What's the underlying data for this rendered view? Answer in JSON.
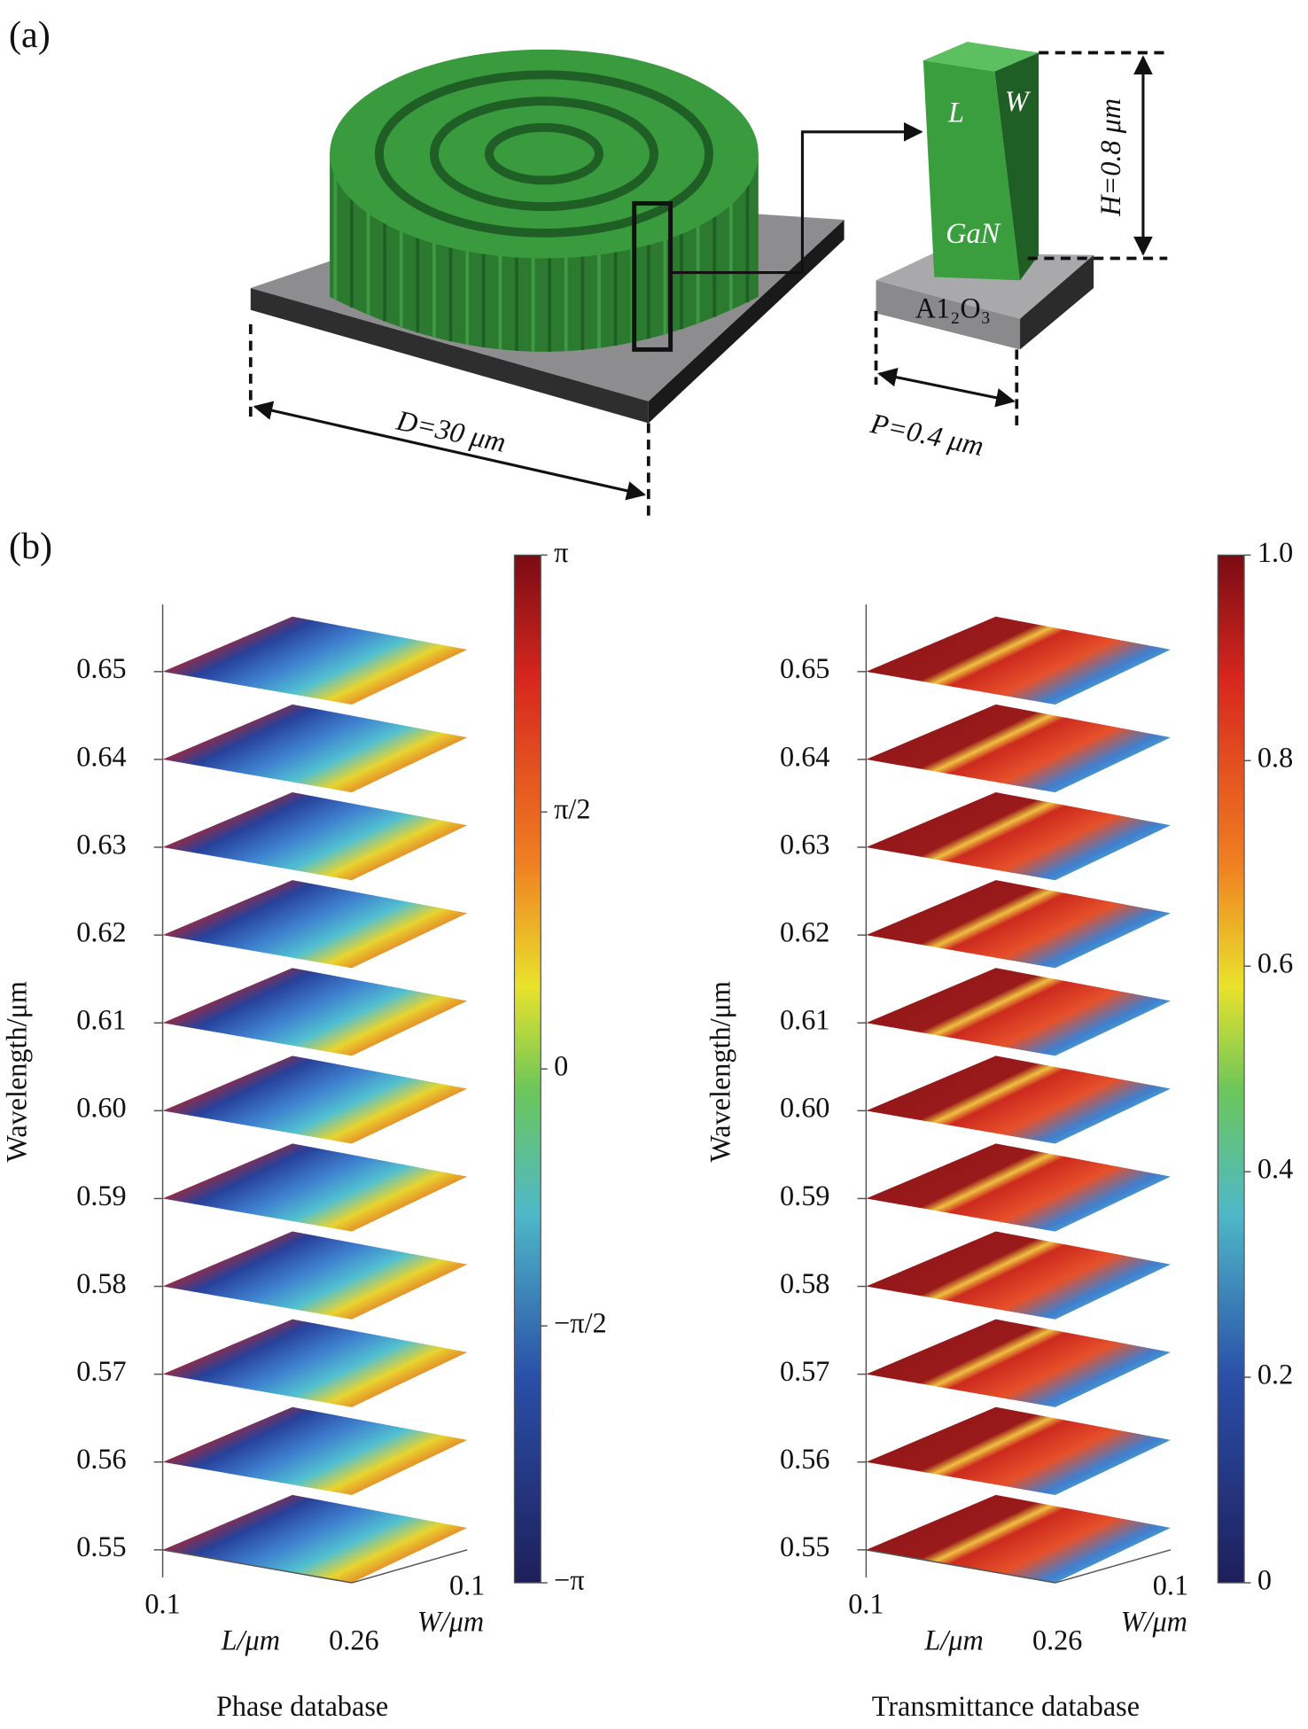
{
  "panel_a": {
    "label": "(a)",
    "pillar_length": "L",
    "pillar_width": "W",
    "pillar_material": "GaN",
    "substrate": "A1₂O₃",
    "height": "H=0.8 μm",
    "diameter": "D=30 μm",
    "period": "P=0.4 μm"
  },
  "panel_b": {
    "label": "(b)",
    "plots": [
      {
        "title": "Phase database",
        "y_label": "Wavelength/μm",
        "y_ticks": [
          "0.65",
          "0.64",
          "0.63",
          "0.62",
          "0.61",
          "0.60",
          "0.59",
          "0.58",
          "0.57",
          "0.56",
          "0.55"
        ],
        "l_label": "L/μm",
        "l_ticks": [
          "0.1",
          "0.26"
        ],
        "w_label": "W/μm",
        "w_tick": "0.1",
        "colorbar_ticks": [
          "π",
          "π/2",
          "0",
          "−π/2",
          "−π"
        ]
      },
      {
        "title": "Transmittance database",
        "y_label": "Wavelength/μm",
        "y_ticks": [
          "0.65",
          "0.64",
          "0.63",
          "0.62",
          "0.61",
          "0.60",
          "0.59",
          "0.58",
          "0.57",
          "0.56",
          "0.55"
        ],
        "l_label": "L/μm",
        "l_ticks": [
          "0.1",
          "0.26"
        ],
        "w_label": "W/μm",
        "w_tick": "0.1",
        "colorbar_ticks": [
          "1.0",
          "0.8",
          "0.6",
          "0.4",
          "0.2",
          "0"
        ]
      }
    ]
  }
}
